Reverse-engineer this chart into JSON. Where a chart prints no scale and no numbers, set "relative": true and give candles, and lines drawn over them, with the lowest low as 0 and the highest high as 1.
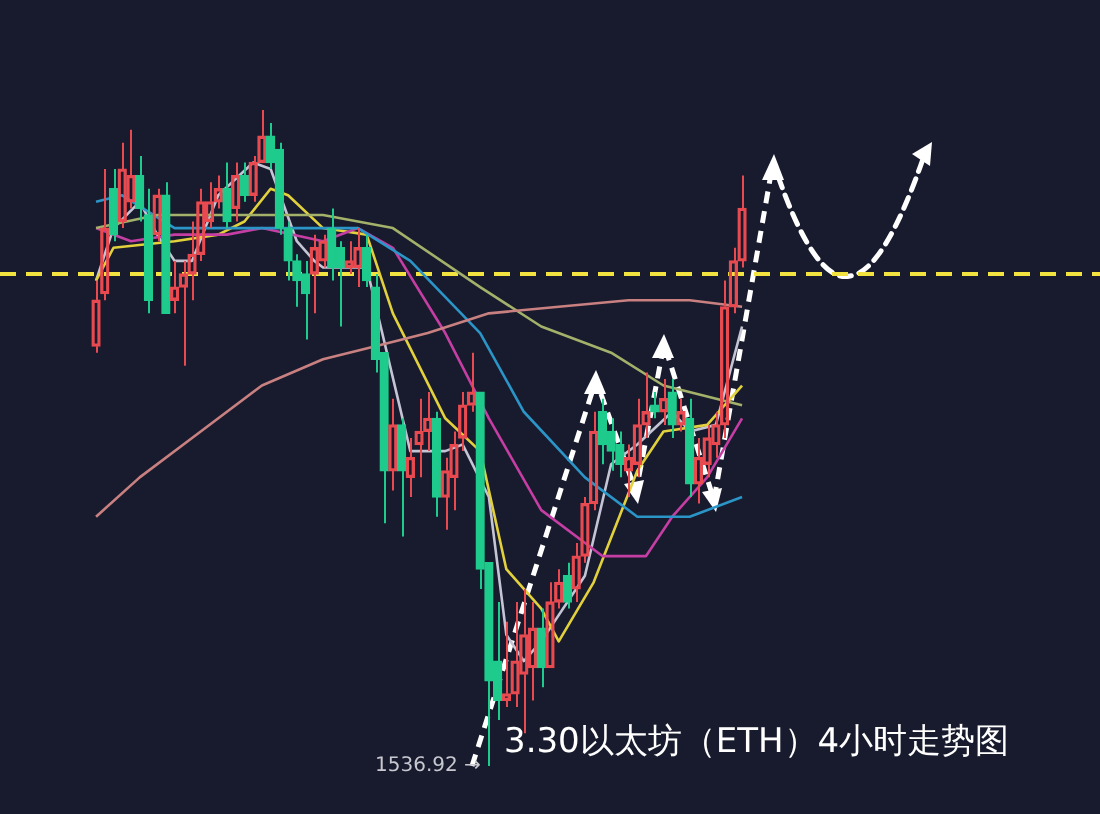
{
  "chart_data": {
    "type": "candlestick",
    "title": "3.30以太坊（ETH）4小时走势图",
    "relative": true,
    "tick_labels": false,
    "categories": [
      null,
      null,
      null,
      null,
      null,
      null,
      null,
      null,
      null,
      null,
      null,
      null,
      null,
      null,
      null,
      null,
      null,
      null,
      null,
      null,
      null,
      null,
      null,
      null,
      null,
      null,
      null,
      null,
      null,
      null,
      null,
      null,
      null,
      null,
      null,
      null,
      null,
      null,
      null,
      null,
      null,
      null,
      null,
      null,
      null,
      null,
      null,
      null,
      null,
      null,
      null,
      null,
      null,
      null,
      null,
      null,
      null,
      null,
      null,
      null,
      null,
      null,
      null,
      null,
      null,
      null,
      null,
      null,
      null,
      null,
      null,
      null,
      null,
      null,
      null,
      null,
      null,
      null,
      null,
      null,
      null,
      null,
      null,
      null,
      null,
      null,
      null,
      null,
      null,
      null,
      null,
      null,
      null,
      null,
      null,
      null,
      null,
      null,
      null,
      null,
      null,
      null,
      null,
      null,
      null
    ],
    "ohlc": [
      [
        0.64,
        0.74,
        0.63,
        0.71
      ],
      [
        0.72,
        0.91,
        0.71,
        0.82
      ],
      [
        0.88,
        0.91,
        0.8,
        0.81
      ],
      [
        0.83,
        0.95,
        0.82,
        0.91
      ],
      [
        0.86,
        0.97,
        0.85,
        0.9
      ],
      [
        0.9,
        0.93,
        0.83,
        0.85
      ],
      [
        0.84,
        0.88,
        0.69,
        0.71
      ],
      [
        0.81,
        0.88,
        0.8,
        0.87
      ],
      [
        0.87,
        0.89,
        0.69,
        0.69
      ],
      [
        0.71,
        0.77,
        0.69,
        0.73
      ],
      [
        0.73,
        0.77,
        0.61,
        0.75
      ],
      [
        0.75,
        0.83,
        0.71,
        0.78
      ],
      [
        0.78,
        0.88,
        0.77,
        0.86
      ],
      [
        0.83,
        0.89,
        0.82,
        0.86
      ],
      [
        0.86,
        0.9,
        0.85,
        0.88
      ],
      [
        0.88,
        0.92,
        0.82,
        0.83
      ],
      [
        0.85,
        0.92,
        0.83,
        0.9
      ],
      [
        0.9,
        0.92,
        0.86,
        0.87
      ],
      [
        0.87,
        0.93,
        0.86,
        0.92
      ],
      [
        0.92,
        1,
        0.92,
        0.96
      ],
      [
        0.96,
        0.98,
        0.91,
        0.92
      ],
      [
        0.94,
        0.95,
        0.81,
        0.82
      ],
      [
        0.82,
        0.83,
        0.74,
        0.77
      ],
      [
        0.77,
        0.78,
        0.7,
        0.74
      ],
      [
        0.75,
        0.77,
        0.65,
        0.72
      ],
      [
        0.75,
        0.81,
        0.69,
        0.79
      ],
      [
        0.77,
        0.81,
        0.76,
        0.8
      ],
      [
        0.82,
        0.85,
        0.74,
        0.76
      ],
      [
        0.79,
        0.8,
        0.67,
        0.76
      ],
      [
        0.76,
        0.8,
        0.75,
        0.77
      ],
      [
        0.76,
        0.82,
        0.73,
        0.79
      ],
      [
        0.79,
        0.81,
        0.73,
        0.74
      ],
      [
        0.73,
        0.75,
        0.6,
        0.62
      ],
      [
        0.63,
        0.63,
        0.37,
        0.45
      ],
      [
        0.45,
        0.56,
        0.42,
        0.52
      ],
      [
        0.52,
        0.53,
        0.35,
        0.45
      ],
      [
        0.44,
        0.5,
        0.41,
        0.47
      ],
      [
        0.49,
        0.56,
        0.44,
        0.51
      ],
      [
        0.51,
        0.57,
        0.48,
        0.53
      ],
      [
        0.53,
        0.54,
        0.38,
        0.41
      ],
      [
        0.41,
        0.47,
        0.36,
        0.45
      ],
      [
        0.44,
        0.51,
        0.39,
        0.49
      ],
      [
        0.5,
        0.57,
        0.48,
        0.55
      ],
      [
        0.55,
        0.63,
        0.54,
        0.57
      ],
      [
        0.57,
        0.57,
        0.27,
        0.3
      ],
      [
        0.31,
        0.31,
        0,
        0.13
      ],
      [
        0.16,
        0.25,
        0.07,
        0.1
      ],
      [
        0.1,
        0.22,
        0.09,
        0.11
      ],
      [
        0.11,
        0.25,
        0.09,
        0.16
      ],
      [
        0.14,
        0.27,
        0.05,
        0.2
      ],
      [
        0.15,
        0.25,
        0.1,
        0.21
      ],
      [
        0.21,
        0.24,
        0.12,
        0.15
      ],
      [
        0.15,
        0.28,
        0.15,
        0.25
      ],
      [
        0.25,
        0.3,
        0.24,
        0.28
      ],
      [
        0.29,
        0.31,
        0.24,
        0.25
      ],
      [
        0.27,
        0.34,
        0.25,
        0.32
      ],
      [
        0.32,
        0.41,
        0.31,
        0.4
      ],
      [
        0.4,
        0.54,
        0.39,
        0.51
      ],
      [
        0.54,
        0.56,
        0.46,
        0.49
      ],
      [
        0.51,
        0.53,
        0.45,
        0.48
      ],
      [
        0.49,
        0.51,
        0.44,
        0.46
      ],
      [
        0.45,
        0.49,
        0.41,
        0.47
      ],
      [
        0.46,
        0.56,
        0.44,
        0.52
      ],
      [
        0.52,
        0.6,
        0.5,
        0.54
      ],
      [
        0.55,
        0.57,
        0.53,
        0.54
      ],
      [
        0.54,
        0.59,
        0.52,
        0.56
      ],
      [
        0.57,
        0.59,
        0.5,
        0.52
      ],
      [
        0.52,
        0.56,
        0.51,
        0.54
      ],
      [
        0.53,
        0.56,
        0.41,
        0.43
      ],
      [
        0.43,
        0.5,
        0.4,
        0.47
      ],
      [
        0.46,
        0.52,
        0.44,
        0.5
      ],
      [
        0.49,
        0.54,
        0.47,
        0.52
      ],
      [
        0.52,
        0.74,
        0.5,
        0.7
      ],
      [
        0.7,
        0.79,
        0.69,
        0.77
      ],
      [
        0.77,
        0.9,
        0.76,
        0.85
      ],
      null,
      null,
      null,
      null,
      null,
      null,
      null,
      null,
      null,
      null,
      null,
      null,
      null,
      null,
      null,
      null,
      null,
      null,
      null,
      null,
      null,
      null,
      null,
      null,
      null,
      null,
      null,
      null,
      null,
      null
    ],
    "colors": [
      "#e84a50",
      "#e84a50",
      "#1ecb8c",
      "#e84a50",
      "#e84a50",
      "#1ecb8c",
      "#1ecb8c",
      "#e84a50",
      "#1ecb8c",
      "#e84a50",
      "#e84a50",
      "#e84a50",
      "#e84a50",
      "#e84a50",
      "#e84a50",
      "#1ecb8c",
      "#e84a50",
      "#1ecb8c",
      "#e84a50",
      "#e84a50",
      "#1ecb8c",
      "#1ecb8c",
      "#1ecb8c",
      "#1ecb8c",
      "#1ecb8c",
      "#e84a50",
      "#e84a50",
      "#1ecb8c",
      "#1ecb8c",
      "#e84a50",
      "#e84a50",
      "#1ecb8c",
      "#1ecb8c",
      "#1ecb8c",
      "#e84a50",
      "#1ecb8c",
      "#e84a50",
      "#e84a50",
      "#e84a50",
      "#1ecb8c",
      "#e84a50",
      "#e84a50",
      "#e84a50",
      "#e84a50",
      "#1ecb8c",
      "#1ecb8c",
      "#1ecb8c",
      "#e84a50",
      "#e84a50",
      "#e84a50",
      "#e84a50",
      "#1ecb8c",
      "#e84a50",
      "#e84a50",
      "#1ecb8c",
      "#e84a50",
      "#e84a50",
      "#e84a50",
      "#1ecb8c",
      "#1ecb8c",
      "#1ecb8c",
      "#e84a50",
      "#e84a50",
      "#e84a50",
      "#1ecb8c",
      "#e84a50",
      "#1ecb8c",
      "#e84a50",
      "#1ecb8c",
      "#e84a50",
      "#e84a50",
      "#e84a50",
      "#e84a50",
      "#e84a50",
      "#e84a50",
      null,
      null,
      null,
      null,
      null,
      null,
      null,
      null,
      null,
      null,
      null,
      null,
      null,
      null,
      null,
      null,
      null,
      null,
      null,
      null,
      null,
      null,
      null,
      null,
      null,
      null,
      null,
      null,
      null,
      null
    ],
    "series": [
      {
        "type": "line",
        "color": "#c98080",
        "values": [
          0.38,
          null,
          null,
          null,
          null,
          0.44,
          null,
          null,
          null,
          null,
          null,
          0.5,
          null,
          null,
          null,
          null,
          null,
          null,
          null,
          0.58,
          null,
          null,
          null,
          null,
          null,
          null,
          0.62,
          null,
          null,
          null,
          null,
          null,
          0.64,
          null,
          null,
          null,
          null,
          null,
          0.66,
          null,
          null,
          null,
          null,
          null,
          null,
          0.69,
          null,
          null,
          null,
          null,
          null,
          null,
          null,
          0.7,
          null,
          null,
          null,
          null,
          null,
          null,
          null,
          0.71,
          null,
          null,
          null,
          null,
          null,
          null,
          0.71,
          null,
          null,
          null,
          null,
          null,
          0.7,
          null,
          null,
          null,
          null,
          null,
          null,
          null,
          null,
          null,
          null,
          null,
          null,
          null,
          null,
          null,
          null,
          null,
          null,
          null,
          null,
          null,
          null,
          null,
          null,
          null,
          null,
          null,
          null,
          null,
          null
        ]
      },
      {
        "type": "line",
        "color": "#a3b16a",
        "values": [
          0.82,
          null,
          null,
          null,
          null,
          null,
          null,
          0.84,
          null,
          null,
          null,
          null,
          null,
          null,
          null,
          null,
          null,
          null,
          null,
          0.84,
          null,
          null,
          null,
          null,
          null,
          null,
          0.84,
          null,
          null,
          null,
          null,
          null,
          null,
          null,
          0.82,
          null,
          null,
          null,
          null,
          null,
          null,
          null,
          null,
          null,
          0.73,
          null,
          null,
          null,
          null,
          null,
          null,
          0.67,
          null,
          null,
          null,
          null,
          null,
          null,
          null,
          0.63,
          null,
          null,
          null,
          null,
          null,
          0.58,
          null,
          null,
          null,
          null,
          null,
          null,
          null,
          null,
          0.55,
          null,
          null,
          null,
          null,
          null,
          null,
          null,
          null,
          null,
          null,
          null,
          null,
          null,
          null,
          null,
          null,
          null,
          null,
          null,
          null,
          null,
          null,
          null,
          null,
          null,
          null,
          null,
          null,
          null,
          null
        ]
      },
      {
        "type": "line",
        "color": "#2b95c8",
        "values": [
          0.86,
          null,
          null,
          0.87,
          null,
          null,
          null,
          null,
          null,
          0.82,
          null,
          null,
          null,
          null,
          null,
          null,
          0.82,
          null,
          null,
          null,
          null,
          null,
          null,
          null,
          null,
          null,
          0.82,
          null,
          null,
          null,
          0.82,
          null,
          null,
          null,
          null,
          null,
          0.77,
          null,
          null,
          null,
          null,
          null,
          null,
          null,
          0.66,
          null,
          null,
          null,
          null,
          0.54,
          null,
          null,
          null,
          null,
          null,
          null,
          0.44,
          null,
          null,
          null,
          null,
          null,
          0.38,
          null,
          null,
          null,
          null,
          null,
          0.38,
          null,
          null,
          null,
          null,
          null,
          0.41,
          null,
          null,
          null,
          null,
          null,
          null,
          null,
          null,
          null,
          null,
          null,
          null,
          null,
          null,
          null,
          null,
          null,
          null,
          null,
          null,
          null,
          null,
          null,
          null,
          null,
          null,
          null,
          null,
          null,
          null
        ]
      },
      {
        "type": "line",
        "color": "#c43ea3",
        "values": [
          0.82,
          null,
          null,
          null,
          0.8,
          null,
          null,
          null,
          null,
          0.81,
          null,
          null,
          null,
          null,
          null,
          0.81,
          null,
          null,
          null,
          0.82,
          null,
          null,
          null,
          null,
          null,
          null,
          0.8,
          null,
          null,
          null,
          0.82,
          null,
          null,
          null,
          0.79,
          null,
          null,
          null,
          null,
          null,
          0.66,
          null,
          null,
          null,
          null,
          0.53,
          null,
          null,
          null,
          null,
          null,
          0.39,
          null,
          null,
          null,
          null,
          null,
          null,
          0.32,
          null,
          null,
          null,
          null,
          0.32,
          null,
          null,
          0.38,
          null,
          null,
          null,
          0.44,
          null,
          null,
          null,
          0.53,
          null,
          null,
          null,
          null,
          null,
          null,
          null,
          null,
          null,
          null,
          null,
          null,
          null,
          null,
          null,
          null,
          null,
          null,
          null,
          null,
          null,
          null,
          null,
          null,
          null,
          null,
          null,
          null,
          null,
          null
        ]
      },
      {
        "type": "line",
        "color": "#e2d13c",
        "values": [
          0.74,
          null,
          0.79,
          null,
          null,
          null,
          null,
          null,
          null,
          0.8,
          null,
          null,
          null,
          null,
          0.81,
          null,
          null,
          0.83,
          null,
          null,
          0.88,
          null,
          0.87,
          null,
          null,
          null,
          0.82,
          null,
          null,
          null,
          null,
          0.81,
          null,
          null,
          0.69,
          null,
          null,
          null,
          null,
          null,
          0.53,
          null,
          null,
          null,
          0.48,
          null,
          null,
          0.3,
          null,
          null,
          null,
          0.24,
          null,
          0.19,
          null,
          null,
          null,
          0.28,
          null,
          null,
          null,
          null,
          0.45,
          null,
          null,
          0.51,
          null,
          null,
          null,
          null,
          0.52,
          null,
          null,
          null,
          0.58,
          null,
          null,
          null,
          null,
          null,
          null,
          null,
          null,
          null,
          null,
          null,
          null,
          null,
          null,
          null,
          null,
          null,
          null,
          null,
          null,
          null,
          null,
          null,
          null,
          null,
          null,
          null,
          null,
          null,
          null
        ]
      },
      {
        "type": "line",
        "color": "#c4c4d4",
        "values": [
          0.74,
          null,
          0.82,
          null,
          null,
          0.86,
          null,
          0.81,
          null,
          0.77,
          null,
          0.77,
          null,
          null,
          0.87,
          null,
          null,
          null,
          0.92,
          null,
          0.91,
          null,
          null,
          0.8,
          null,
          0.77,
          0.76,
          null,
          null,
          null,
          null,
          0.76,
          null,
          null,
          null,
          null,
          0.48,
          null,
          null,
          null,
          0.48,
          null,
          0.49,
          null,
          null,
          0.41,
          null,
          0.2,
          null,
          0.16,
          null,
          0.19,
          null,
          null,
          null,
          null,
          0.29,
          null,
          null,
          0.46,
          null,
          null,
          0.49,
          null,
          null,
          null,
          0.54,
          null,
          0.51,
          null,
          null,
          0.52,
          null,
          null,
          0.67,
          null,
          null,
          null,
          null,
          null,
          null,
          null,
          null,
          null,
          null,
          null,
          null,
          null,
          null,
          null,
          null,
          null,
          null,
          null,
          null,
          null,
          null,
          null,
          null,
          null,
          null,
          null,
          null,
          null,
          null
        ]
      }
    ],
    "ref_lines": [
      {
        "axis": "y",
        "value": 0.75,
        "color": "#f2e340",
        "line_style": "dashed"
      }
    ],
    "annotations": [
      "1536.92 →"
    ]
  }
}
